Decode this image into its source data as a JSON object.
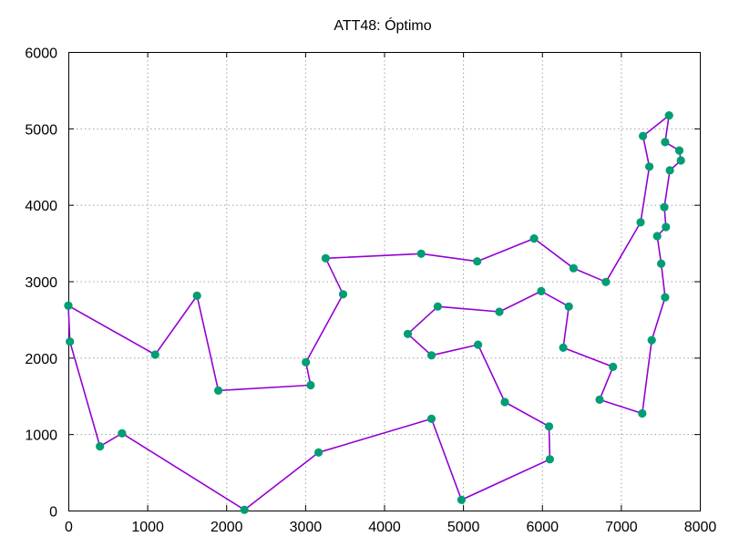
{
  "chart_data": {
    "type": "line",
    "title": "ATT48: Óptimo",
    "xlabel": "",
    "ylabel": "",
    "xlim": [
      0,
      8000
    ],
    "ylim": [
      0,
      6000
    ],
    "xticks": [
      "0",
      "1000",
      "2000",
      "3000",
      "4000",
      "5000",
      "6000",
      "7000",
      "8000"
    ],
    "yticks": [
      "0",
      "1000",
      "2000",
      "3000",
      "4000",
      "5000",
      "6000"
    ],
    "grid": true,
    "line_color": "#9400d3",
    "marker_color": "#009e73",
    "series": [
      {
        "x": [
          0,
          1100,
          1630,
          1900,
          3070,
          3010,
          3480,
          3260,
          4470,
          5180,
          5900,
          6400,
          6810,
          7250,
          7360,
          7280,
          7610,
          7560,
          7740,
          7760,
          7620,
          7550,
          7570,
          7460,
          7510,
          7560,
          7390,
          7270,
          6730,
          6900,
          6270,
          6340,
          5990,
          5460,
          4680,
          4300,
          4600,
          5190,
          5530,
          6090,
          6100,
          4980,
          4600,
          3170,
          2230,
          680,
          400,
          20,
          0
        ],
        "y": [
          2680,
          2040,
          2810,
          1570,
          1640,
          1940,
          2830,
          3300,
          3360,
          3260,
          3560,
          3170,
          2990,
          3770,
          4500,
          4900,
          5170,
          4820,
          4710,
          4580,
          4450,
          3970,
          3710,
          3590,
          3230,
          2790,
          2230,
          1270,
          1450,
          1880,
          2130,
          2670,
          2870,
          2600,
          2670,
          2310,
          2030,
          2170,
          1420,
          1100,
          670,
          140,
          1200,
          760,
          10,
          1010,
          840,
          2210,
          2680
        ]
      }
    ]
  }
}
